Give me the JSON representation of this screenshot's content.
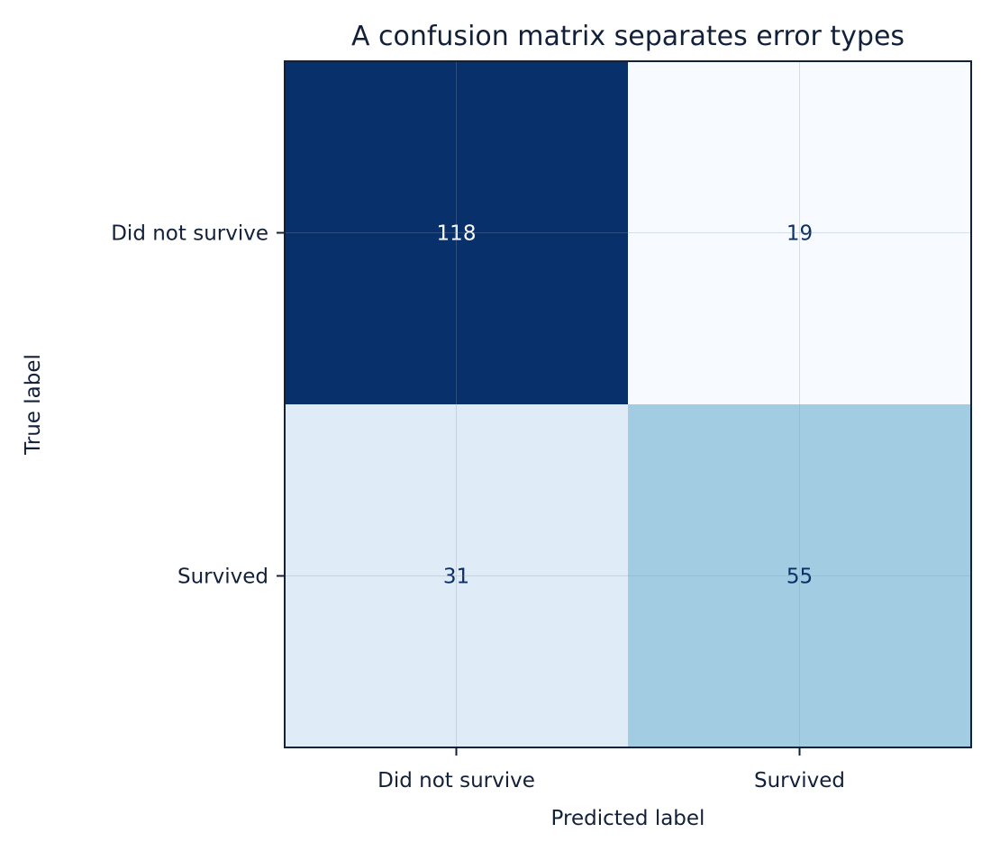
{
  "chart_data": {
    "type": "heatmap",
    "title": "A confusion matrix separates error types",
    "xlabel": "Predicted label",
    "ylabel": "True label",
    "x_categories": [
      "Did not survive",
      "Survived"
    ],
    "y_categories": [
      "Did not survive",
      "Survived"
    ],
    "values": [
      [
        118,
        19
      ],
      [
        31,
        55
      ]
    ],
    "colormap": "Blues",
    "grid": true,
    "colors": {
      "cell_high": "#08306b",
      "cell_low": "#f7fbff",
      "text_dark": "#13203a",
      "text_on_dark": "#ffffff",
      "text_on_light": "#0b2f66",
      "frame": "#13203a"
    }
  }
}
